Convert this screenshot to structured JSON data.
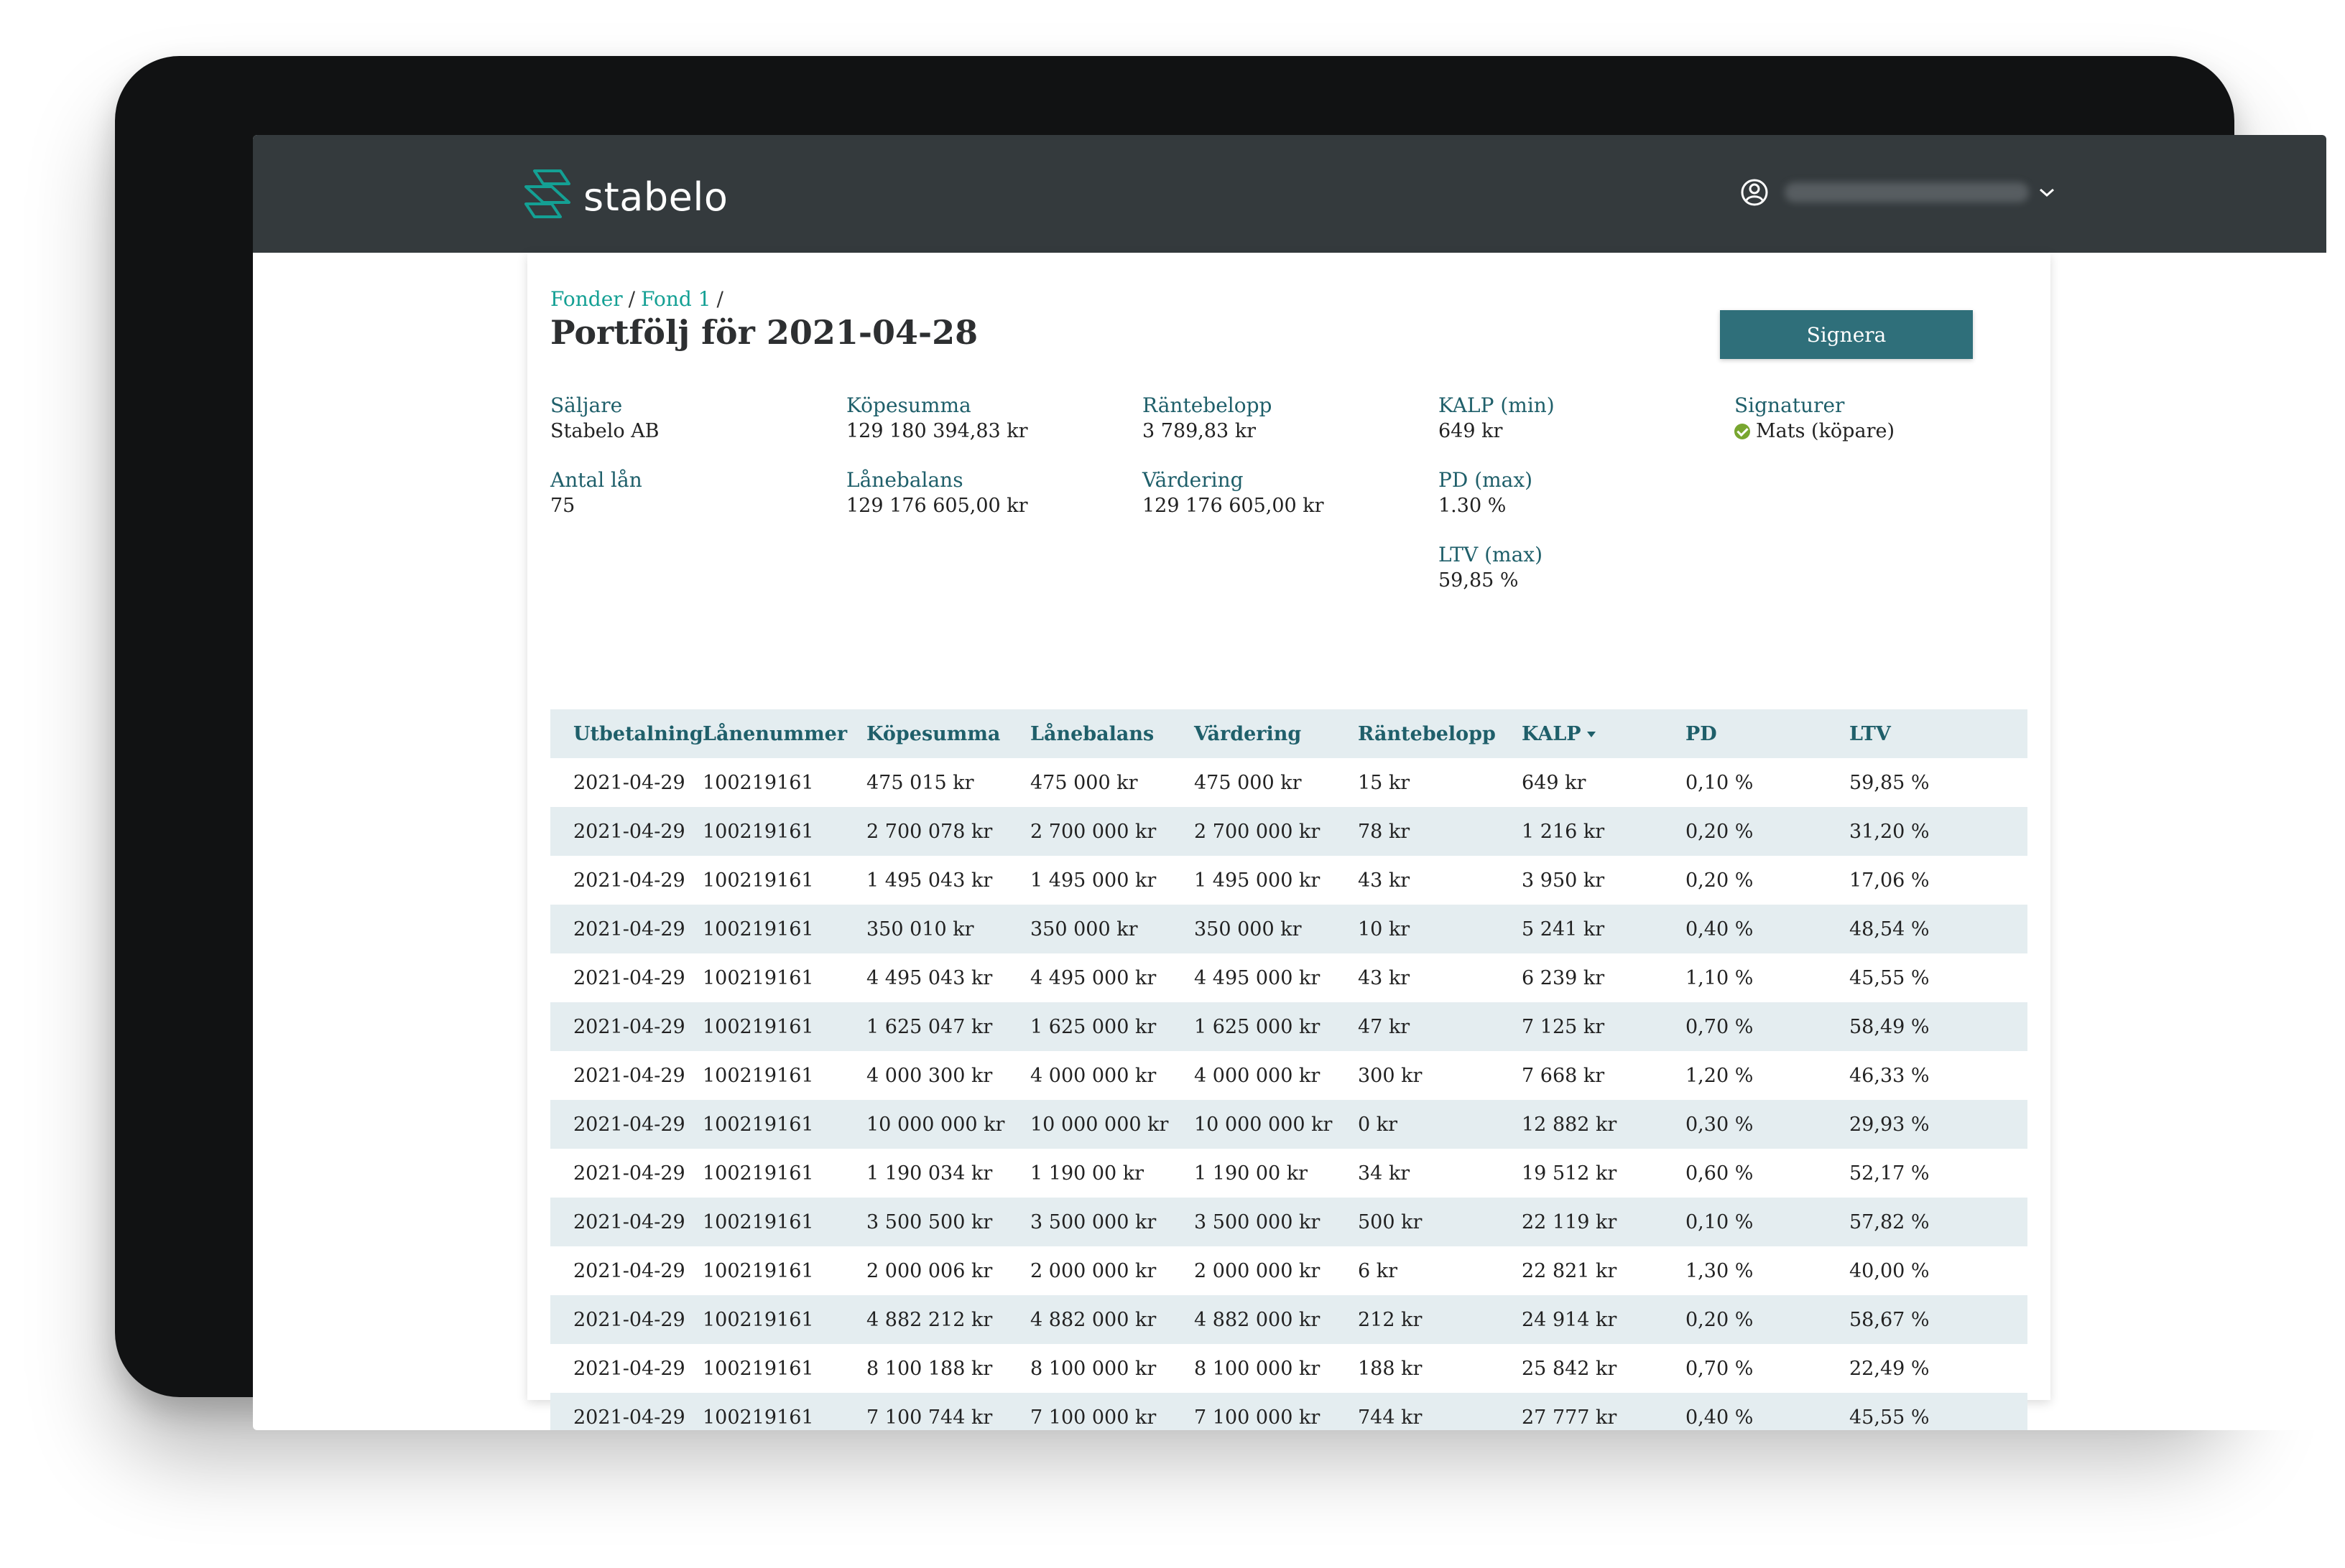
{
  "app": {
    "brand": "stabelo",
    "user_email": "camilla.carlelt@stabelo.se"
  },
  "breadcrumb": [
    "Fonder",
    "Fond 1"
  ],
  "page": {
    "title": "Portfölj för 2021-04-28",
    "sign_button": "Signera"
  },
  "summary": {
    "seller_label": "Säljare",
    "seller_value": "Stabelo AB",
    "loan_count_label": "Antal lån",
    "loan_count_value": "75",
    "purchase_sum_label": "Köpesumma",
    "purchase_sum_value": "129 180 394,83 kr",
    "loan_balance_label": "Lånebalans",
    "loan_balance_value": "129 176 605,00 kr",
    "interest_label": "Räntebelopp",
    "interest_value": "3 789,83 kr",
    "valuation_label": "Värdering",
    "valuation_value": "129 176 605,00 kr",
    "kalp_label": "KALP (min)",
    "kalp_value": "649 kr",
    "pd_label": "PD (max)",
    "pd_value": "1.30 %",
    "ltv_label": "LTV (max)",
    "ltv_value": "59,85 %",
    "signatures_label": "Signaturer",
    "signatures_value": "Mats (köpare)"
  },
  "table": {
    "columns": [
      "Utbetalning",
      "Lånenummer",
      "Köpesumma",
      "Lånebalans",
      "Värdering",
      "Räntebelopp",
      "KALP",
      "PD",
      "LTV"
    ],
    "sorted_column": "KALP",
    "rows": [
      [
        "2021-04-29",
        "100219161",
        "475 015 kr",
        "475 000 kr",
        "475 000 kr",
        "15 kr",
        "649 kr",
        "0,10 %",
        "59,85 %"
      ],
      [
        "2021-04-29",
        "100219161",
        "2 700 078 kr",
        "2 700 000 kr",
        "2 700 000 kr",
        "78 kr",
        "1 216 kr",
        "0,20 %",
        "31,20 %"
      ],
      [
        "2021-04-29",
        "100219161",
        "1 495 043 kr",
        "1 495 000 kr",
        "1 495 000 kr",
        "43 kr",
        "3 950 kr",
        "0,20 %",
        "17,06 %"
      ],
      [
        "2021-04-29",
        "100219161",
        "350 010 kr",
        "350 000 kr",
        "350 000 kr",
        "10 kr",
        "5 241 kr",
        "0,40 %",
        "48,54 %"
      ],
      [
        "2021-04-29",
        "100219161",
        "4 495 043 kr",
        "4 495 000 kr",
        "4 495 000 kr",
        "43 kr",
        "6 239 kr",
        "1,10 %",
        "45,55 %"
      ],
      [
        "2021-04-29",
        "100219161",
        "1 625 047 kr",
        "1 625 000 kr",
        "1 625 000 kr",
        "47 kr",
        "7 125 kr",
        "0,70 %",
        "58,49 %"
      ],
      [
        "2021-04-29",
        "100219161",
        "4 000 300 kr",
        "4 000 000 kr",
        "4 000 000 kr",
        "300 kr",
        "7 668 kr",
        "1,20 %",
        "46,33 %"
      ],
      [
        "2021-04-29",
        "100219161",
        "10 000 000 kr",
        "10 000 000 kr",
        "10 000 000 kr",
        "0 kr",
        "12 882 kr",
        "0,30 %",
        "29,93 %"
      ],
      [
        "2021-04-29",
        "100219161",
        "1 190 034 kr",
        "1 190 00 kr",
        "1 190 00 kr",
        "34 kr",
        "19 512 kr",
        "0,60 %",
        "52,17 %"
      ],
      [
        "2021-04-29",
        "100219161",
        "3 500 500 kr",
        "3 500 000 kr",
        "3 500 000 kr",
        "500 kr",
        "22 119 kr",
        "0,10 %",
        "57,82 %"
      ],
      [
        "2021-04-29",
        "100219161",
        "2 000 006 kr",
        "2 000 000 kr",
        "2 000 000 kr",
        "6 kr",
        "22 821 kr",
        "1,30 %",
        "40,00 %"
      ],
      [
        "2021-04-29",
        "100219161",
        "4 882 212 kr",
        "4 882 000 kr",
        "4 882 000 kr",
        "212 kr",
        "24 914 kr",
        "0,20 %",
        "58,67 %"
      ],
      [
        "2021-04-29",
        "100219161",
        "8 100 188 kr",
        "8 100 000 kr",
        "8 100 000 kr",
        "188 kr",
        "25 842 kr",
        "0,70 %",
        "22,49 %"
      ],
      [
        "2021-04-29",
        "100219161",
        "7 100 744 kr",
        "7 100 000 kr",
        "7 100 000 kr",
        "744 kr",
        "27 777 kr",
        "0,40 %",
        "45,55 %"
      ]
    ]
  },
  "colors": {
    "topbar": "#343a3d",
    "accent_teal": "#14a094",
    "button": "#2f6f7a",
    "label": "#1f5f6a",
    "row_stripe": "#e4edf0",
    "signed_check": "#78a630"
  },
  "icons": {
    "logo": "stabelo-hexagon-logo",
    "user": "user-circle-icon",
    "dropdown": "chevron-down-icon",
    "signed": "check-circle-icon",
    "sort": "sort-desc-icon"
  }
}
